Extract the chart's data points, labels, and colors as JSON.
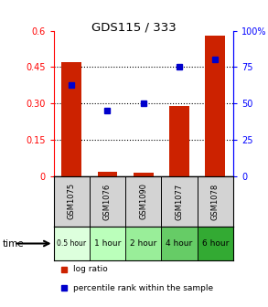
{
  "title": "GDS115 / 333",
  "samples": [
    "GSM1075",
    "GSM1076",
    "GSM1090",
    "GSM1077",
    "GSM1078"
  ],
  "time_labels": [
    "0.5 hour",
    "1 hour",
    "2 hour",
    "4 hour",
    "6 hour"
  ],
  "log_ratio": [
    0.47,
    0.02,
    0.015,
    0.29,
    0.58
  ],
  "percentile": [
    63,
    45,
    50,
    75,
    80
  ],
  "bar_color": "#cc2200",
  "dot_color": "#0000cc",
  "ylim_left": [
    0,
    0.6
  ],
  "ylim_right": [
    0,
    100
  ],
  "yticks_left": [
    0,
    0.15,
    0.3,
    0.45,
    0.6
  ],
  "ytick_labels_left": [
    "0",
    "0.15",
    "0.30",
    "0.45",
    "0.6"
  ],
  "yticks_right": [
    0,
    25,
    50,
    75,
    100
  ],
  "ytick_labels_right": [
    "0",
    "25",
    "50",
    "75",
    "100%"
  ],
  "hlines": [
    0.15,
    0.3,
    0.45
  ],
  "time_colors": [
    "#ddffdd",
    "#bbffbb",
    "#99ee99",
    "#66cc66",
    "#33aa33"
  ],
  "sample_bg": "#d3d3d3",
  "bar_width": 0.55,
  "legend_log": "log ratio",
  "legend_pct": "percentile rank within the sample"
}
